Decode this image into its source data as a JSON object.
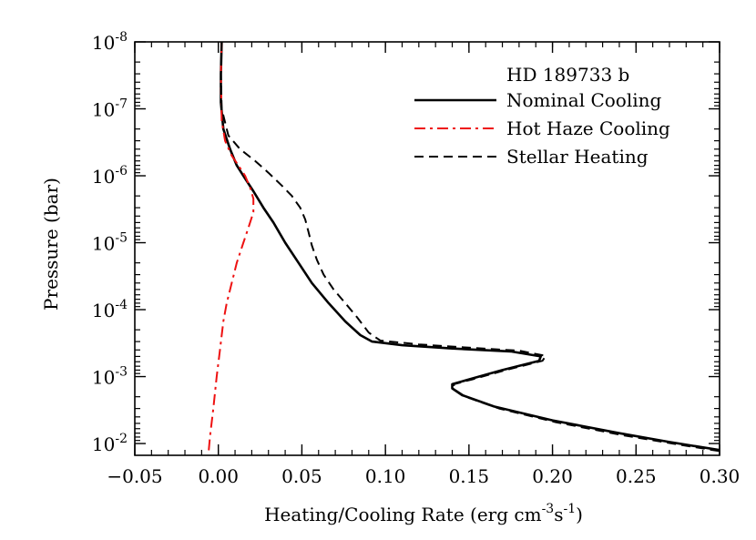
{
  "chart_data": {
    "type": "line",
    "title": "",
    "xlabel": "Heating/Cooling Rate (erg cm",
    "xlabel_sup1": "-3",
    "xlabel_mid": "s",
    "xlabel_sup2": "-1",
    "xlabel_end": ")",
    "ylabel": "Pressure (bar)",
    "xlim": [
      -0.05,
      0.3
    ],
    "ylim": [
      1e-08,
      0.015
    ],
    "yscale": "log",
    "x_ticks": [
      -0.05,
      0.0,
      0.05,
      0.1,
      0.15,
      0.2,
      0.25,
      0.3
    ],
    "x_tick_labels": [
      "−0.05",
      "0.00",
      "0.05",
      "0.10",
      "0.15",
      "0.20",
      "0.25",
      "0.30"
    ],
    "y_ticks": [
      1e-08,
      1e-07,
      1e-06,
      1e-05,
      0.0001,
      0.001,
      0.01
    ],
    "y_tick_exponents": [
      "-8",
      "-7",
      "-6",
      "-5",
      "-4",
      "-3",
      "-2"
    ],
    "y_tick_base": "10",
    "grid": false,
    "legend_placement": "top-right",
    "legend_title": "HD 189733 b",
    "series": [
      {
        "name": "Nominal Cooling",
        "color": "#000000",
        "style": "solid",
        "points": [
          [
            0.002,
            1e-08
          ],
          [
            0.0015,
            3e-08
          ],
          [
            0.0015,
            8e-08
          ],
          [
            0.003,
            2e-07
          ],
          [
            0.007,
            4e-07
          ],
          [
            0.011,
            7e-07
          ],
          [
            0.016,
            1.1e-06
          ],
          [
            0.021,
            1.7e-06
          ],
          [
            0.027,
            3e-06
          ],
          [
            0.033,
            5e-06
          ],
          [
            0.04,
            1e-05
          ],
          [
            0.048,
            2e-05
          ],
          [
            0.056,
            4e-05
          ],
          [
            0.066,
            8e-05
          ],
          [
            0.076,
            0.00015
          ],
          [
            0.085,
            0.00024
          ],
          [
            0.092,
            0.0003
          ],
          [
            0.11,
            0.00034
          ],
          [
            0.14,
            0.00038
          ],
          [
            0.175,
            0.00042
          ],
          [
            0.193,
            0.0005
          ],
          [
            0.192,
            0.00058
          ],
          [
            0.17,
            0.0008
          ],
          [
            0.15,
            0.0011
          ],
          [
            0.14,
            0.0013
          ],
          [
            0.14,
            0.0015
          ],
          [
            0.146,
            0.0019
          ],
          [
            0.165,
            0.0028
          ],
          [
            0.2,
            0.0045
          ],
          [
            0.24,
            0.007
          ],
          [
            0.27,
            0.0095
          ],
          [
            0.3,
            0.0125
          ]
        ]
      },
      {
        "name": "Hot Haze Cooling",
        "color": "#ee1111",
        "style": "dashdot",
        "points": [
          [
            0.002,
            1e-08
          ],
          [
            0.0015,
            3e-08
          ],
          [
            0.002,
            1.5e-07
          ],
          [
            0.004,
            3e-07
          ],
          [
            0.008,
            5e-07
          ],
          [
            0.012,
            7e-07
          ],
          [
            0.016,
            1e-06
          ],
          [
            0.019,
            1.5e-06
          ],
          [
            0.021,
            2.2e-06
          ],
          [
            0.021,
            3.5e-06
          ],
          [
            0.018,
            6e-06
          ],
          [
            0.015,
            1e-05
          ],
          [
            0.011,
            2e-05
          ],
          [
            0.008,
            4e-05
          ],
          [
            0.005,
            8e-05
          ],
          [
            0.003,
            0.00015
          ],
          [
            0.001,
            0.0004
          ],
          [
            -0.001,
            0.001
          ],
          [
            -0.003,
            0.003
          ],
          [
            -0.005,
            0.008
          ],
          [
            -0.006,
            0.015
          ]
        ]
      },
      {
        "name": "Stellar Heating",
        "color": "#000000",
        "style": "dashed",
        "points": [
          [
            0.002,
            1e-08
          ],
          [
            0.0015,
            3e-08
          ],
          [
            0.002,
            1e-07
          ],
          [
            0.006,
            2.5e-07
          ],
          [
            0.013,
            4e-07
          ],
          [
            0.022,
            6e-07
          ],
          [
            0.03,
            9e-07
          ],
          [
            0.038,
            1.4e-06
          ],
          [
            0.044,
            2e-06
          ],
          [
            0.049,
            3e-06
          ],
          [
            0.052,
            4.5e-06
          ],
          [
            0.054,
            7e-06
          ],
          [
            0.056,
            1.1e-05
          ],
          [
            0.059,
            1.8e-05
          ],
          [
            0.063,
            3e-05
          ],
          [
            0.069,
            5e-05
          ],
          [
            0.076,
            8e-05
          ],
          [
            0.083,
            0.00013
          ],
          [
            0.09,
            0.00022
          ],
          [
            0.097,
            0.00029
          ],
          [
            0.12,
            0.00033
          ],
          [
            0.15,
            0.00037
          ],
          [
            0.18,
            0.00041
          ],
          [
            0.196,
            0.00049
          ],
          [
            0.194,
            0.00058
          ],
          [
            0.172,
            0.0008
          ],
          [
            0.152,
            0.0011
          ],
          [
            0.141,
            0.0013
          ],
          [
            0.141,
            0.00155
          ],
          [
            0.148,
            0.002
          ],
          [
            0.168,
            0.003
          ],
          [
            0.202,
            0.0048
          ],
          [
            0.242,
            0.0075
          ],
          [
            0.272,
            0.01
          ],
          [
            0.3,
            0.013
          ]
        ]
      }
    ]
  }
}
